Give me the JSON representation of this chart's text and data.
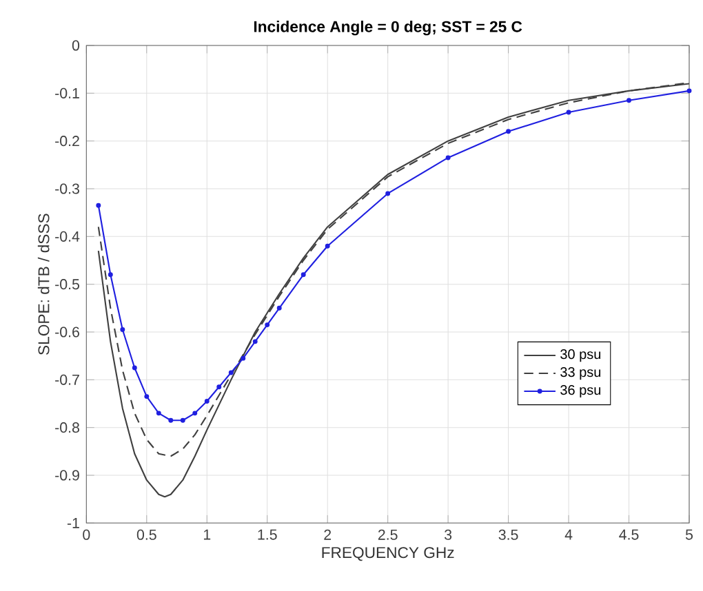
{
  "chart_data": {
    "type": "line",
    "title": "Incidence Angle = 0  deg;   SST = 25 C",
    "xlabel": "FREQUENCY   GHz",
    "ylabel": "SLOPE: dTB / dSSS",
    "xlim": [
      0,
      5
    ],
    "ylim": [
      -1,
      0
    ],
    "xticks": [
      0,
      0.5,
      1,
      1.5,
      2,
      2.5,
      3,
      3.5,
      4,
      4.5,
      5
    ],
    "yticks": [
      -1,
      -0.9,
      -0.8,
      -0.7,
      -0.6,
      -0.5,
      -0.4,
      -0.3,
      -0.2,
      -0.1,
      0
    ],
    "grid": true,
    "legend": "right",
    "series": [
      {
        "name": "30 psu",
        "color": "#404040",
        "line_style": "solid",
        "marker": "none",
        "x": [
          0.1,
          0.2,
          0.3,
          0.4,
          0.5,
          0.6,
          0.65,
          0.7,
          0.8,
          0.9,
          1.0,
          1.2,
          1.4,
          1.5,
          1.6,
          1.8,
          2.0,
          2.5,
          3.0,
          3.5,
          4.0,
          4.5,
          5.0
        ],
        "values": [
          -0.43,
          -0.62,
          -0.76,
          -0.855,
          -0.91,
          -0.94,
          -0.945,
          -0.94,
          -0.91,
          -0.86,
          -0.805,
          -0.7,
          -0.6,
          -0.56,
          -0.52,
          -0.445,
          -0.38,
          -0.27,
          -0.2,
          -0.15,
          -0.115,
          -0.095,
          -0.08
        ]
      },
      {
        "name": "33 psu",
        "color": "#404040",
        "line_style": "dashed",
        "marker": "none",
        "x": [
          0.1,
          0.2,
          0.3,
          0.4,
          0.5,
          0.6,
          0.7,
          0.8,
          0.9,
          1.0,
          1.2,
          1.4,
          1.5,
          1.6,
          1.8,
          2.0,
          2.5,
          3.0,
          3.5,
          4.0,
          4.5,
          5.0
        ],
        "values": [
          -0.38,
          -0.55,
          -0.68,
          -0.77,
          -0.825,
          -0.855,
          -0.86,
          -0.845,
          -0.815,
          -0.775,
          -0.69,
          -0.605,
          -0.565,
          -0.525,
          -0.45,
          -0.385,
          -0.275,
          -0.205,
          -0.155,
          -0.12,
          -0.095,
          -0.078
        ]
      },
      {
        "name": "36 psu",
        "color": "#2020e0",
        "line_style": "solid",
        "marker": "circle",
        "x": [
          0.1,
          0.2,
          0.3,
          0.4,
          0.5,
          0.6,
          0.7,
          0.8,
          0.9,
          1.0,
          1.1,
          1.2,
          1.3,
          1.4,
          1.5,
          1.6,
          1.8,
          2.0,
          2.5,
          3.0,
          3.5,
          4.0,
          4.5,
          5.0
        ],
        "values": [
          -0.335,
          -0.48,
          -0.595,
          -0.675,
          -0.735,
          -0.77,
          -0.785,
          -0.785,
          -0.77,
          -0.745,
          -0.715,
          -0.685,
          -0.655,
          -0.62,
          -0.585,
          -0.55,
          -0.48,
          -0.42,
          -0.31,
          -0.235,
          -0.18,
          -0.14,
          -0.115,
          -0.095
        ]
      }
    ]
  }
}
